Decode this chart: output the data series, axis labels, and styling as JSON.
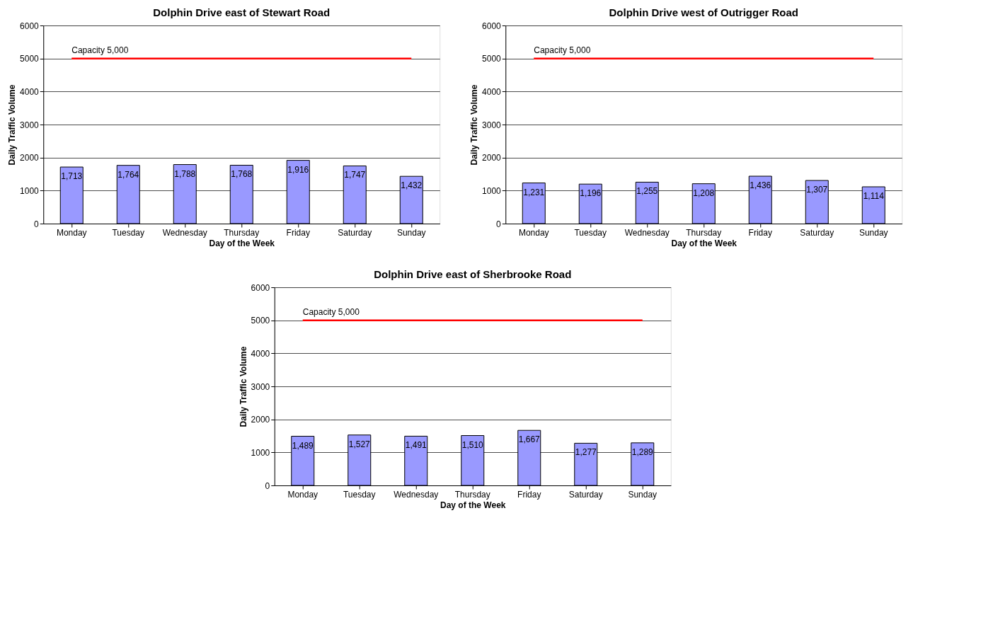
{
  "chart_data": [
    {
      "type": "bar",
      "title": "Dolphin Drive east of Stewart Road",
      "xlabel": "Day of the Week",
      "ylabel": "Daily Traffic Volume",
      "categories": [
        "Monday",
        "Tuesday",
        "Wednesday",
        "Thursday",
        "Friday",
        "Saturday",
        "Sunday"
      ],
      "values": [
        1713,
        1764,
        1788,
        1768,
        1916,
        1747,
        1432
      ],
      "value_labels": [
        "1,713",
        "1,764",
        "1,788",
        "1,768",
        "1,916",
        "1,747",
        "1,432"
      ],
      "color": "#9999ff",
      "ylim": [
        0,
        6000
      ],
      "yticks": [
        0,
        1000,
        2000,
        3000,
        4000,
        5000,
        6000
      ],
      "grid": "y",
      "ref_lines": [
        {
          "axis": "y",
          "value": 5000,
          "label": "Capacity 5,000",
          "color": "#ff0000"
        }
      ]
    },
    {
      "type": "bar",
      "title": "Dolphin Drive west of Outrigger Road",
      "xlabel": "Day of the Week",
      "ylabel": "Daily Traffic Volume",
      "categories": [
        "Monday",
        "Tuesday",
        "Wednesday",
        "Thursday",
        "Friday",
        "Saturday",
        "Sunday"
      ],
      "values": [
        1231,
        1196,
        1255,
        1208,
        1436,
        1307,
        1114
      ],
      "value_labels": [
        "1,231",
        "1,196",
        "1,255",
        "1,208",
        "1,436",
        "1,307",
        "1,114"
      ],
      "color": "#9999ff",
      "ylim": [
        0,
        6000
      ],
      "yticks": [
        0,
        1000,
        2000,
        3000,
        4000,
        5000,
        6000
      ],
      "grid": "y",
      "ref_lines": [
        {
          "axis": "y",
          "value": 5000,
          "label": "Capacity 5,000",
          "color": "#ff0000"
        }
      ]
    },
    {
      "type": "bar",
      "title": "Dolphin Drive east of Sherbrooke Road",
      "xlabel": "Day of the Week",
      "ylabel": "Daily Traffic Volume",
      "categories": [
        "Monday",
        "Tuesday",
        "Wednesday",
        "Thursday",
        "Friday",
        "Saturday",
        "Sunday"
      ],
      "values": [
        1489,
        1527,
        1491,
        1510,
        1667,
        1277,
        1289
      ],
      "value_labels": [
        "1,489",
        "1,527",
        "1,491",
        "1,510",
        "1,667",
        "1,277",
        "1,289"
      ],
      "color": "#9999ff",
      "ylim": [
        0,
        6000
      ],
      "yticks": [
        0,
        1000,
        2000,
        3000,
        4000,
        5000,
        6000
      ],
      "grid": "y",
      "ref_lines": [
        {
          "axis": "y",
          "value": 5000,
          "label": "Capacity 5,000",
          "color": "#ff0000"
        }
      ]
    }
  ]
}
